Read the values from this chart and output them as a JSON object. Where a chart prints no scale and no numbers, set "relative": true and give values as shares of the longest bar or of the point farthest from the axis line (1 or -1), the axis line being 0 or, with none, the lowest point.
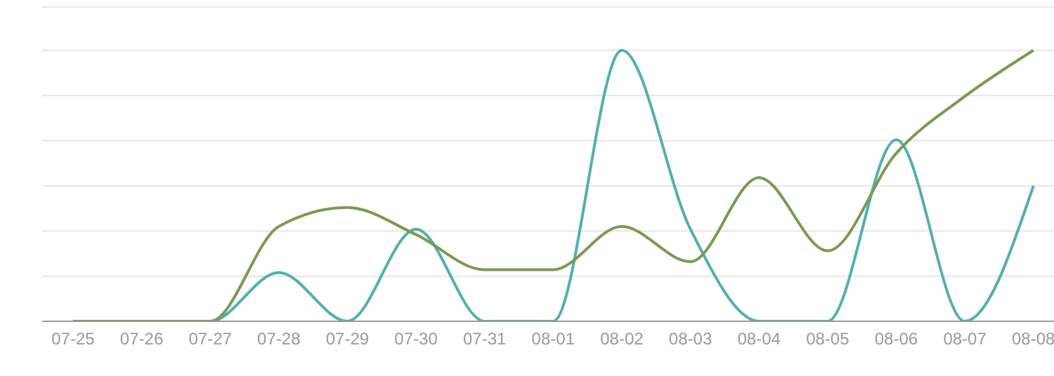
{
  "chart_data": {
    "type": "line",
    "relative": true,
    "grid": "y",
    "marker": "none",
    "line_style": "solid",
    "categories": [
      "07-25",
      "07-26",
      "07-27",
      "07-28",
      "07-29",
      "07-30",
      "07-31",
      "08-01",
      "08-02",
      "08-03",
      "08-04",
      "08-05",
      "08-06",
      "08-07",
      "08-08"
    ],
    "series": [
      {
        "color": "#52b0ae",
        "values": [
          0,
          0,
          0,
          0.18,
          0,
          0.34,
          0,
          0,
          1,
          0.34,
          0,
          0,
          0.67,
          0,
          0.5
        ]
      },
      {
        "color": "#7a9a52",
        "values": [
          0,
          0,
          0,
          0.35,
          0.42,
          0.32,
          0.19,
          0.19,
          0.35,
          0.22,
          0.53,
          0.26,
          0.62,
          0.83,
          1
        ]
      }
    ]
  }
}
